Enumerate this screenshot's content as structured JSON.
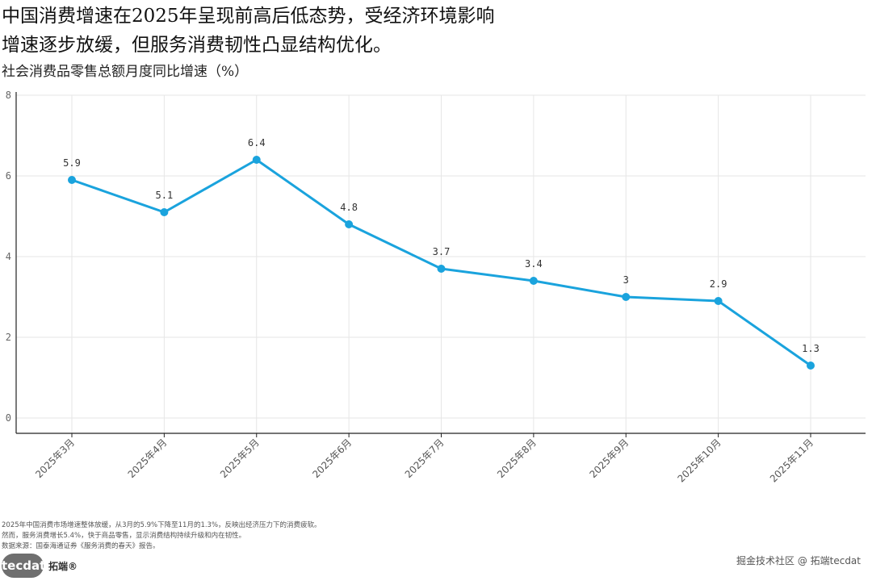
{
  "header": {
    "title_line1": "中国消费增速在2025年呈现前高后低态势，受经济环境影响",
    "title_line2": "增速逐步放缓，但服务消费韧性凸显结构优化。",
    "subtitle": "社会消费品零售总额月度同比增速（%）"
  },
  "chart_data": {
    "type": "line",
    "categories": [
      "2025年3月",
      "2025年4月",
      "2025年5月",
      "2025年6月",
      "2025年7月",
      "2025年8月",
      "2025年9月",
      "2025年10月",
      "2025年11月"
    ],
    "values": [
      5.9,
      5.1,
      6.4,
      4.8,
      3.7,
      3.4,
      3,
      2.9,
      1.3
    ],
    "data_labels": [
      "5.9",
      "5.1",
      "6.4",
      "4.8",
      "3.7",
      "3.4",
      "3",
      "2.9",
      "1.3"
    ],
    "y_ticks": [
      0,
      2,
      4,
      6,
      8
    ],
    "ylim": [
      0,
      8
    ],
    "grid": true,
    "line_color": "#1aa3dd"
  },
  "footer": {
    "notes": [
      "2025年中国消费市场增速整体放缓，从3月的5.9%下降至11月的1.3%，反映出经济压力下的消费疲软。",
      "然而，服务消费增长5.4%，快于商品零售，显示消费结构持续升级和内在韧性。",
      "数据来源：国泰海通证券《服务消费的春天》报告。"
    ],
    "logo_badge": "tecdat",
    "logo_text": "拓端®",
    "watermark": "掘金技术社区 @ 拓端tecdat"
  }
}
